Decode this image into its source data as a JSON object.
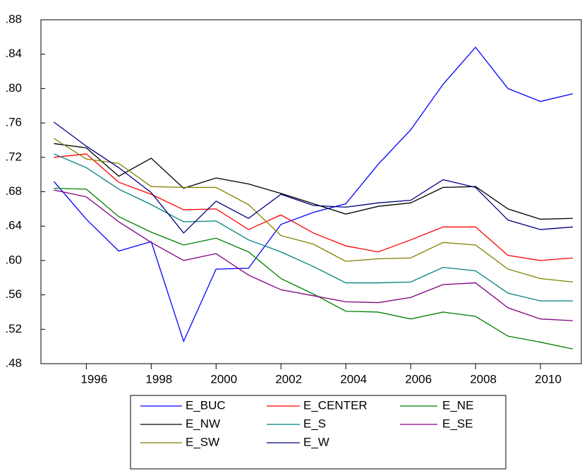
{
  "chart_data": {
    "type": "line",
    "x": [
      1995,
      1996,
      1997,
      1998,
      1999,
      2000,
      2001,
      2002,
      2003,
      2004,
      2005,
      2006,
      2007,
      2008,
      2009,
      2010,
      2011
    ],
    "xlim": [
      1994.6,
      2011.26
    ],
    "xticks": [
      1996,
      1998,
      2000,
      2002,
      2004,
      2006,
      2008,
      2010
    ],
    "ylim": [
      0.48,
      0.88
    ],
    "yticks": [
      {
        "value": 0.48,
        "label": ".48"
      },
      {
        "value": 0.52,
        "label": ".52"
      },
      {
        "value": 0.56,
        "label": ".56"
      },
      {
        "value": 0.6,
        "label": ".60"
      },
      {
        "value": 0.64,
        "label": ".64"
      },
      {
        "value": 0.68,
        "label": ".68"
      },
      {
        "value": 0.72,
        "label": ".72"
      },
      {
        "value": 0.76,
        "label": ".76"
      },
      {
        "value": 0.8,
        "label": ".80"
      },
      {
        "value": 0.84,
        "label": ".84"
      },
      {
        "value": 0.88,
        "label": ".88"
      }
    ],
    "series": [
      {
        "name": "E_BUC",
        "color": "#0000ff",
        "values": [
          0.692,
          0.648,
          0.611,
          0.622,
          0.506,
          0.59,
          0.591,
          0.642,
          0.656,
          0.666,
          0.712,
          0.752,
          0.805,
          0.848,
          0.8,
          0.785,
          0.794
        ]
      },
      {
        "name": "E_CENTER",
        "color": "#ff0000",
        "values": [
          0.72,
          0.724,
          0.691,
          0.677,
          0.659,
          0.66,
          0.636,
          0.653,
          0.632,
          0.617,
          0.61,
          0.624,
          0.639,
          0.639,
          0.606,
          0.6,
          0.603
        ]
      },
      {
        "name": "E_NE",
        "color": "#008000",
        "values": [
          0.684,
          0.683,
          0.651,
          0.633,
          0.618,
          0.626,
          0.61,
          0.579,
          0.561,
          0.541,
          0.54,
          0.532,
          0.54,
          0.535,
          0.512,
          0.505,
          0.497
        ]
      },
      {
        "name": "E_NW",
        "color": "#000000",
        "values": [
          0.736,
          0.731,
          0.698,
          0.719,
          0.684,
          0.696,
          0.689,
          0.678,
          0.666,
          0.654,
          0.663,
          0.667,
          0.685,
          0.686,
          0.66,
          0.648,
          0.649
        ]
      },
      {
        "name": "E_S",
        "color": "#008080",
        "values": [
          0.724,
          0.708,
          0.683,
          0.665,
          0.645,
          0.646,
          0.624,
          0.61,
          0.593,
          0.574,
          0.574,
          0.575,
          0.592,
          0.588,
          0.562,
          0.553,
          0.553
        ]
      },
      {
        "name": "E_SE",
        "color": "#800080",
        "values": [
          0.682,
          0.674,
          0.645,
          0.621,
          0.6,
          0.608,
          0.583,
          0.566,
          0.559,
          0.552,
          0.551,
          0.557,
          0.572,
          0.574,
          0.545,
          0.532,
          0.53
        ]
      },
      {
        "name": "E_SW",
        "color": "#808000",
        "values": [
          0.742,
          0.718,
          0.713,
          0.686,
          0.685,
          0.685,
          0.665,
          0.629,
          0.619,
          0.599,
          0.602,
          0.603,
          0.621,
          0.618,
          0.59,
          0.579,
          0.575
        ]
      },
      {
        "name": "E_W",
        "color": "#000080",
        "values": [
          0.761,
          0.733,
          0.708,
          0.679,
          0.632,
          0.669,
          0.649,
          0.677,
          0.664,
          0.662,
          0.667,
          0.67,
          0.694,
          0.685,
          0.647,
          0.636,
          0.639
        ]
      }
    ]
  }
}
